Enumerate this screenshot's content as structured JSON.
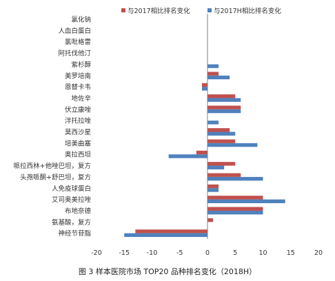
{
  "caption": "图 3  样本医院市场 TOP20 品种排名变化（2018H）",
  "colors": {
    "series1": "#c0504d",
    "series2": "#4f81bd",
    "zero_line": "#808080",
    "text": "#333333"
  },
  "chart_data": {
    "type": "bar",
    "orientation": "horizontal",
    "categories": [
      "氯化钠",
      "人血白蛋白",
      "氯吡格雷",
      "阿托伐他汀",
      "紫杉醇",
      "美罗培南",
      "恩替卡韦",
      "地佐辛",
      "伏立康唑",
      "泮托拉唑",
      "莫西沙星",
      "培美曲塞",
      "奥拉西坦",
      "哌拉西林+他唑巴坦，复方",
      "头孢哌酮+舒巴坦，复方",
      "人免疫球蛋白",
      "艾司奥美拉唑",
      "布地奈德",
      "氨基酸，复方",
      "神经节苷脂"
    ],
    "series": [
      {
        "name": "与2017相比排名变化",
        "values": [
          0,
          0,
          0,
          0,
          0,
          2,
          -1,
          5,
          6,
          0,
          4,
          5,
          -2,
          5,
          6,
          2,
          10,
          10,
          1,
          -13
        ]
      },
      {
        "name": "与2017H相比排名变化",
        "values": [
          0,
          0,
          0,
          0,
          2,
          4,
          -1,
          6,
          6,
          2,
          5,
          9,
          -7,
          3,
          10,
          2,
          14,
          10,
          0,
          -15
        ]
      }
    ],
    "xlim": [
      -20,
      20
    ],
    "x_ticks": [
      "-20",
      "-15",
      "-10",
      "-5",
      "0",
      "5",
      "10",
      "15",
      "20"
    ],
    "grid": false,
    "legend_position": "top-right",
    "title": "",
    "xlabel": "",
    "ylabel": ""
  }
}
